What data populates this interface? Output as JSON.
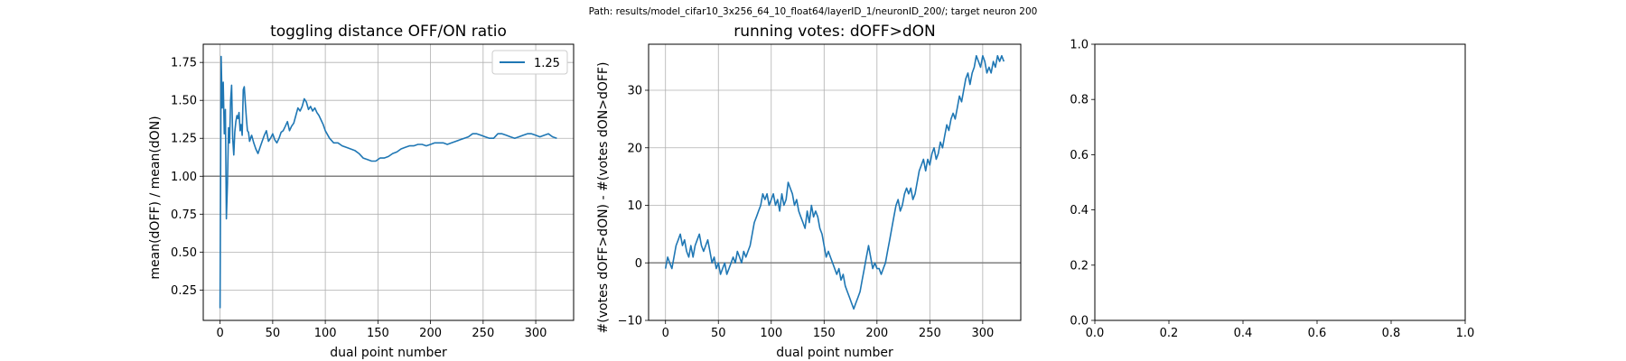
{
  "suptitle": "Path: results/model_cifar10_3x256_64_10_float64/layerID_1/neuronID_200/; target neuron 200",
  "colors": {
    "series": "#1f77b4",
    "refline": "#808080",
    "grid": "#b0b0b0"
  },
  "chart_data": [
    {
      "type": "line",
      "title": "toggling distance OFF/ON ratio",
      "xlabel": "dual point number",
      "ylabel": "mean(dOFF) / mean(dON)",
      "xlim": [
        -16,
        336
      ],
      "ylim": [
        0.05,
        1.87
      ],
      "xticks": [
        0,
        50,
        100,
        150,
        200,
        250,
        300
      ],
      "xtick_labels": [
        "0",
        "50",
        "100",
        "150",
        "200",
        "250",
        "300"
      ],
      "yticks": [
        0.25,
        0.5,
        0.75,
        1.0,
        1.25,
        1.5,
        1.75
      ],
      "ytick_labels": [
        "0.25",
        "0.50",
        "0.75",
        "1.00",
        "1.25",
        "1.50",
        "1.75"
      ],
      "grid": true,
      "reference_line": 1.0,
      "legend": {
        "placement": "upper right",
        "entries": [
          "1.25"
        ]
      },
      "series": [
        {
          "name": "1.25",
          "x": [
            0,
            1,
            2,
            3,
            4,
            5,
            6,
            7,
            8,
            9,
            10,
            11,
            12,
            13,
            14,
            15,
            16,
            17,
            18,
            19,
            20,
            21,
            22,
            23,
            24,
            25,
            26,
            27,
            28,
            30,
            32,
            34,
            36,
            38,
            40,
            42,
            44,
            46,
            48,
            50,
            52,
            54,
            56,
            58,
            60,
            62,
            64,
            66,
            68,
            70,
            72,
            74,
            76,
            78,
            80,
            82,
            84,
            86,
            88,
            90,
            92,
            94,
            96,
            98,
            100,
            104,
            108,
            112,
            116,
            120,
            124,
            128,
            132,
            136,
            140,
            144,
            148,
            152,
            156,
            160,
            164,
            168,
            172,
            176,
            180,
            184,
            188,
            192,
            196,
            200,
            204,
            208,
            212,
            216,
            220,
            224,
            228,
            232,
            236,
            240,
            244,
            248,
            252,
            256,
            260,
            264,
            268,
            272,
            276,
            280,
            284,
            288,
            292,
            296,
            300,
            304,
            308,
            312,
            316,
            320
          ],
          "y": [
            0.13,
            1.79,
            1.45,
            1.62,
            1.28,
            1.44,
            0.72,
            0.95,
            1.32,
            1.22,
            1.5,
            1.6,
            1.25,
            1.14,
            1.29,
            1.36,
            1.4,
            1.38,
            1.42,
            1.3,
            1.34,
            1.27,
            1.57,
            1.59,
            1.48,
            1.38,
            1.3,
            1.29,
            1.23,
            1.27,
            1.22,
            1.18,
            1.15,
            1.19,
            1.23,
            1.27,
            1.3,
            1.23,
            1.25,
            1.28,
            1.24,
            1.22,
            1.25,
            1.29,
            1.3,
            1.33,
            1.36,
            1.3,
            1.33,
            1.35,
            1.4,
            1.45,
            1.43,
            1.46,
            1.51,
            1.49,
            1.44,
            1.46,
            1.43,
            1.45,
            1.42,
            1.4,
            1.37,
            1.34,
            1.3,
            1.25,
            1.22,
            1.22,
            1.2,
            1.19,
            1.18,
            1.17,
            1.15,
            1.12,
            1.11,
            1.1,
            1.1,
            1.12,
            1.12,
            1.13,
            1.15,
            1.16,
            1.18,
            1.19,
            1.2,
            1.2,
            1.21,
            1.21,
            1.2,
            1.21,
            1.22,
            1.22,
            1.22,
            1.21,
            1.22,
            1.23,
            1.24,
            1.25,
            1.26,
            1.28,
            1.28,
            1.27,
            1.26,
            1.25,
            1.25,
            1.28,
            1.28,
            1.27,
            1.26,
            1.25,
            1.26,
            1.27,
            1.28,
            1.28,
            1.27,
            1.26,
            1.27,
            1.28,
            1.26,
            1.25
          ]
        }
      ]
    },
    {
      "type": "line",
      "title": "running votes: dOFF>dON",
      "xlabel": "dual point number",
      "ylabel": "#(votes dOFF>dON) - #(votes dON>dOFF)",
      "xlim": [
        -16,
        336
      ],
      "ylim": [
        -10,
        38
      ],
      "xticks": [
        0,
        50,
        100,
        150,
        200,
        250,
        300
      ],
      "xtick_labels": [
        "0",
        "50",
        "100",
        "150",
        "200",
        "250",
        "300"
      ],
      "yticks": [
        -10,
        0,
        10,
        20,
        30
      ],
      "ytick_labels": [
        "−10",
        "0",
        "10",
        "20",
        "30"
      ],
      "grid": true,
      "reference_line": 0,
      "series": [
        {
          "x": [
            0,
            2,
            4,
            6,
            8,
            10,
            12,
            14,
            16,
            18,
            20,
            22,
            24,
            26,
            28,
            30,
            32,
            34,
            36,
            38,
            40,
            42,
            44,
            46,
            48,
            50,
            52,
            54,
            56,
            58,
            60,
            62,
            64,
            66,
            68,
            70,
            72,
            74,
            76,
            78,
            80,
            82,
            84,
            86,
            88,
            90,
            92,
            94,
            96,
            98,
            100,
            102,
            104,
            106,
            108,
            110,
            112,
            114,
            116,
            118,
            120,
            122,
            124,
            126,
            128,
            130,
            132,
            134,
            136,
            138,
            140,
            142,
            144,
            146,
            148,
            150,
            152,
            154,
            156,
            158,
            160,
            162,
            164,
            166,
            168,
            170,
            172,
            174,
            176,
            178,
            180,
            182,
            184,
            186,
            188,
            190,
            192,
            194,
            196,
            198,
            200,
            202,
            204,
            206,
            208,
            210,
            212,
            214,
            216,
            218,
            220,
            222,
            224,
            226,
            228,
            230,
            232,
            234,
            236,
            238,
            240,
            242,
            244,
            246,
            248,
            250,
            252,
            254,
            256,
            258,
            260,
            262,
            264,
            266,
            268,
            270,
            272,
            274,
            276,
            278,
            280,
            282,
            284,
            286,
            288,
            290,
            292,
            294,
            296,
            298,
            300,
            302,
            304,
            306,
            308,
            310,
            312,
            314,
            316,
            318,
            320
          ],
          "y": [
            -1,
            1,
            0,
            -1,
            1,
            3,
            4,
            5,
            3,
            4,
            2,
            1,
            3,
            1,
            3,
            4,
            5,
            3,
            2,
            3,
            4,
            2,
            0,
            1,
            -1,
            0,
            -2,
            -1,
            0,
            -2,
            -1,
            0,
            1,
            0,
            2,
            1,
            0,
            2,
            1,
            2,
            3,
            5,
            7,
            8,
            9,
            10,
            12,
            11,
            12,
            10,
            11,
            12,
            10,
            11,
            9,
            12,
            10,
            11,
            14,
            13,
            12,
            10,
            11,
            9,
            8,
            7,
            6,
            9,
            7,
            10,
            8,
            9,
            8,
            6,
            5,
            3,
            1,
            2,
            1,
            0,
            -1,
            -2,
            -1,
            -3,
            -2,
            -4,
            -5,
            -6,
            -7,
            -8,
            -7,
            -6,
            -5,
            -3,
            -1,
            1,
            3,
            1,
            -1,
            0,
            -1,
            -1,
            -2,
            -1,
            0,
            2,
            4,
            6,
            8,
            10,
            11,
            9,
            10,
            12,
            13,
            12,
            13,
            11,
            12,
            14,
            16,
            17,
            18,
            16,
            18,
            17,
            19,
            20,
            18,
            19,
            21,
            20,
            22,
            24,
            23,
            25,
            26,
            25,
            27,
            29,
            28,
            30,
            32,
            33,
            31,
            33,
            34,
            36,
            35,
            34,
            36,
            35,
            33,
            34,
            33,
            35,
            34,
            36,
            35,
            36,
            35
          ]
        }
      ]
    },
    {
      "type": "line",
      "title": "",
      "xlabel": "",
      "ylabel": "",
      "xlim": [
        0,
        1
      ],
      "ylim": [
        0,
        1
      ],
      "xticks": [
        0,
        0.2,
        0.4,
        0.6,
        0.8,
        1.0
      ],
      "xtick_labels": [
        "0.0",
        "0.2",
        "0.4",
        "0.6",
        "0.8",
        "1.0"
      ],
      "yticks": [
        0,
        0.2,
        0.4,
        0.6,
        0.8,
        1.0
      ],
      "ytick_labels": [
        "0.0",
        "0.2",
        "0.4",
        "0.6",
        "0.8",
        "1.0"
      ],
      "grid": false,
      "series": []
    }
  ]
}
